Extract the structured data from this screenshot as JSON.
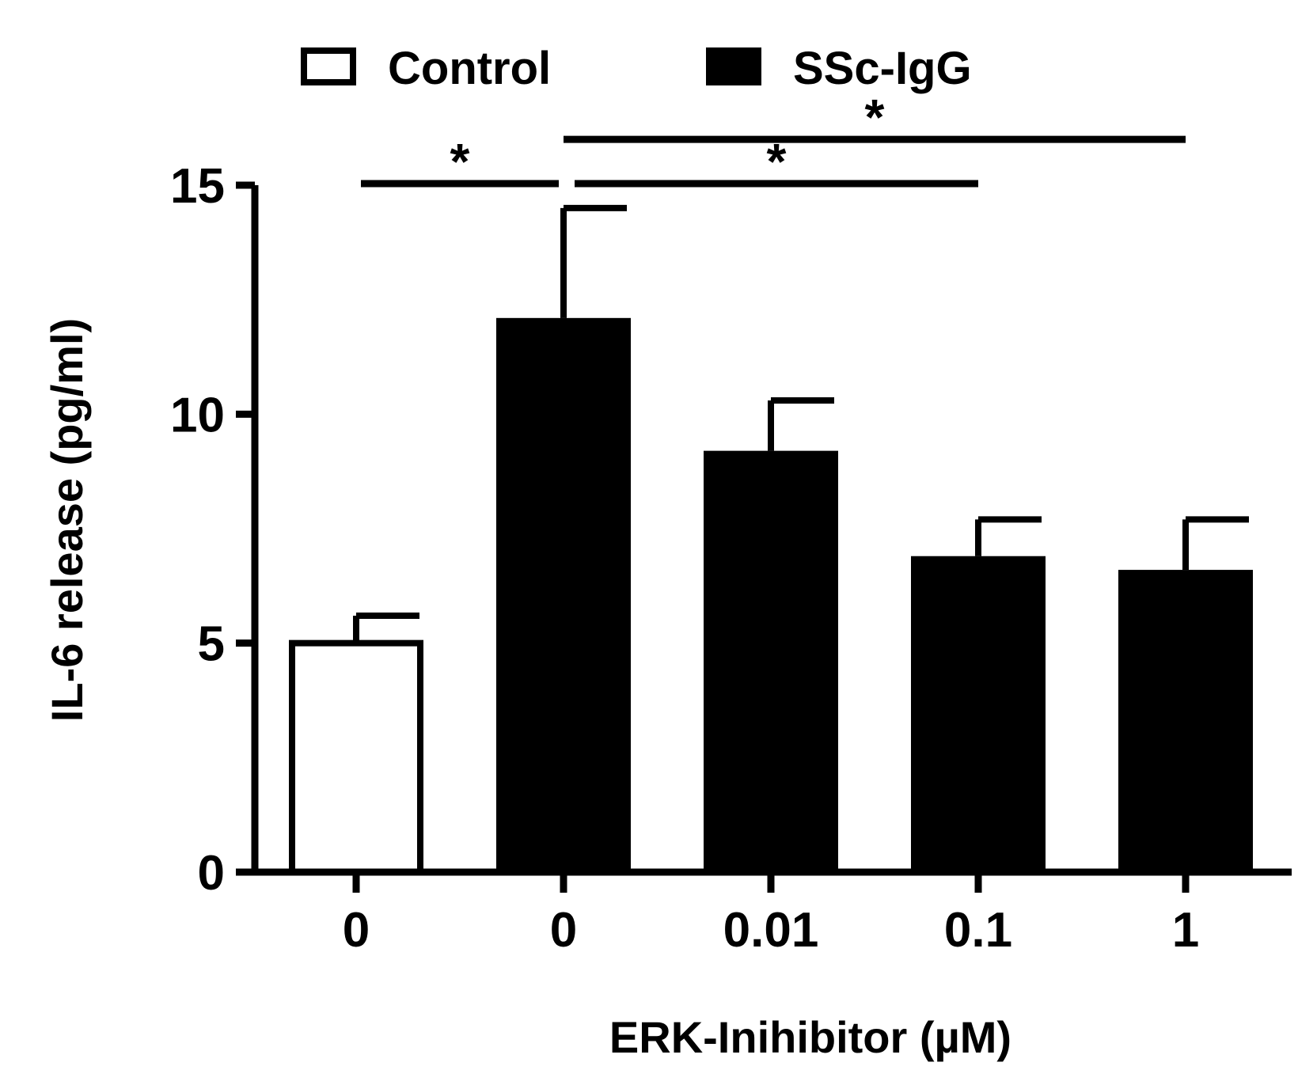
{
  "chart_data": {
    "type": "bar",
    "xlabel": "ERK-Inihibitor (µM)",
    "ylabel": "IL-6 release (pg/ml)",
    "ylim": [
      0,
      15
    ],
    "yticks": [
      "0",
      "5",
      "10",
      "15"
    ],
    "categories": [
      "0",
      "0",
      "0.01",
      "0.1",
      "1"
    ],
    "legend": [
      {
        "name": "Control",
        "fill": "#ffffff"
      },
      {
        "name": "SSc-IgG",
        "fill": "#000000"
      }
    ],
    "bars": [
      {
        "category": "0",
        "group": "Control",
        "value": 5.0,
        "error": 0.6
      },
      {
        "category": "0",
        "group": "SSc-IgG",
        "value": 12.1,
        "error": 2.4
      },
      {
        "category": "0.01",
        "group": "SSc-IgG",
        "value": 9.2,
        "error": 1.1
      },
      {
        "category": "0.1",
        "group": "SSc-IgG",
        "value": 6.9,
        "error": 0.8
      },
      {
        "category": "1",
        "group": "SSc-IgG",
        "value": 6.6,
        "error": 1.1
      }
    ],
    "significance": [
      {
        "from": 0,
        "to": 1,
        "label": "*",
        "level": 15.0
      },
      {
        "from": 1,
        "to": 3,
        "label": "*",
        "level": 15.0
      },
      {
        "from": 1,
        "to": 4,
        "label": "*",
        "level": 16.0
      }
    ],
    "grid": false,
    "legend_position": "top"
  },
  "colors": {
    "ink": "#000000",
    "background": "#ffffff"
  }
}
